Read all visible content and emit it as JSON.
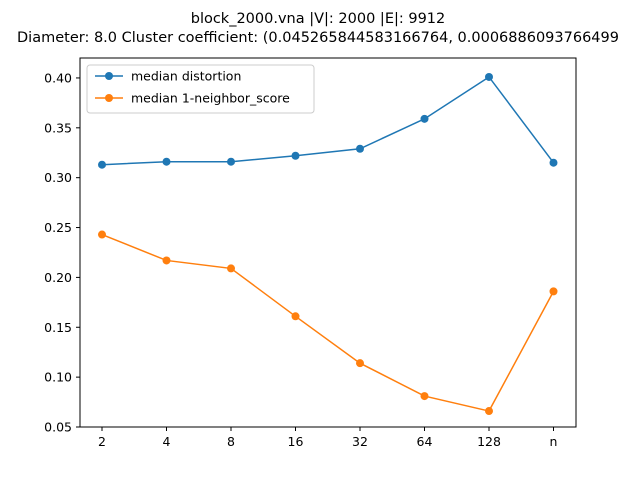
{
  "chart_data": {
    "type": "line",
    "title": "block_2000.vna |V|: 2000 |E|: 9912",
    "subtitle": "Diameter: 8.0 Cluster coefficient: (0.045265844583166764, 0.0006886093766499",
    "xlabel": "",
    "ylabel": "",
    "categories": [
      "2",
      "4",
      "8",
      "16",
      "32",
      "64",
      "128",
      "n"
    ],
    "ylim": [
      0.05,
      0.42
    ],
    "yticks": [
      "0.05",
      "0.10",
      "0.15",
      "0.20",
      "0.25",
      "0.30",
      "0.35",
      "0.40"
    ],
    "grid": false,
    "legend_position": "upper-left",
    "series": [
      {
        "name": "median distortion",
        "color": "#1f77b4",
        "values": [
          0.313,
          0.316,
          0.316,
          0.322,
          0.329,
          0.359,
          0.401,
          0.315
        ]
      },
      {
        "name": "median 1-neighbor_score",
        "color": "#ff7f0e",
        "values": [
          0.243,
          0.217,
          0.209,
          0.161,
          0.114,
          0.081,
          0.066,
          0.186
        ]
      }
    ]
  }
}
